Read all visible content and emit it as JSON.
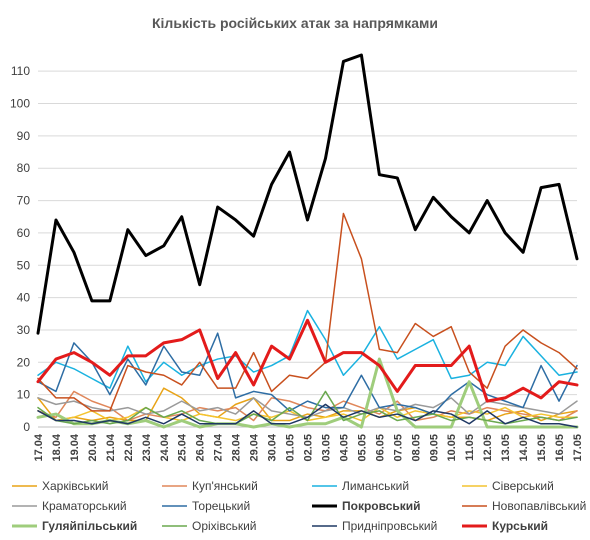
{
  "chart_data": {
    "type": "line",
    "title": "Кількість російських атак за напрямками",
    "xlabel": "",
    "ylabel": "",
    "ylim": [
      0,
      115
    ],
    "yticks": [
      0,
      10,
      20,
      30,
      40,
      50,
      60,
      70,
      80,
      90,
      100,
      110
    ],
    "grid": true,
    "legend_position": "bottom",
    "categories": [
      "17.04",
      "18.04",
      "19.04",
      "20.04",
      "21.04",
      "22.04",
      "23.04",
      "24.04",
      "25.04",
      "26.04",
      "27.04",
      "28.04",
      "29.04",
      "30.04",
      "01.05",
      "02.05",
      "03.05",
      "04.05",
      "05.05",
      "06.05",
      "07.05",
      "08.05",
      "09.05",
      "10.05",
      "11.05",
      "12.05",
      "13.05",
      "14.05",
      "15.05",
      "16.05",
      "17.05"
    ],
    "series": [
      {
        "name": "Харківський",
        "color": "#e8a317",
        "width": 1.5,
        "values": [
          9,
          2,
          3,
          2,
          3,
          2,
          2,
          12,
          9,
          4,
          3,
          7,
          9,
          2,
          2,
          4,
          3,
          5,
          5,
          3,
          5,
          6,
          4,
          3,
          3,
          2,
          4,
          5,
          2,
          4,
          5
        ]
      },
      {
        "name": "Куп'янський",
        "color": "#e0875a",
        "width": 1.5,
        "values": [
          5,
          3,
          11,
          8,
          6,
          2,
          4,
          3,
          4,
          6,
          5,
          6,
          2,
          9,
          8,
          6,
          5,
          8,
          6,
          4,
          8,
          2,
          3,
          5,
          4,
          6,
          5,
          4,
          3,
          2,
          5
        ]
      },
      {
        "name": "Лиманський",
        "color": "#1ab2e0",
        "width": 1.5,
        "values": [
          16,
          20,
          18,
          15,
          12,
          25,
          14,
          20,
          16,
          19,
          21,
          22,
          17,
          19,
          22,
          36,
          27,
          16,
          22,
          31,
          21,
          24,
          27,
          15,
          16,
          20,
          19,
          28,
          22,
          16,
          17
        ]
      },
      {
        "name": "Сіверський",
        "color": "#f4c430",
        "width": 1.5,
        "values": [
          5,
          2,
          3,
          5,
          2,
          3,
          6,
          3,
          2,
          4,
          3,
          2,
          4,
          3,
          5,
          2,
          3,
          4,
          2,
          6,
          3,
          5,
          4,
          3,
          5,
          4,
          6,
          3,
          4,
          3,
          3
        ]
      },
      {
        "name": "Краматорський",
        "color": "#9a9a9a",
        "width": 1.5,
        "values": [
          9,
          7,
          8,
          6,
          5,
          6,
          4,
          5,
          8,
          5,
          6,
          4,
          9,
          5,
          4,
          3,
          5,
          6,
          4,
          6,
          5,
          7,
          6,
          9,
          4,
          8,
          7,
          6,
          5,
          4,
          8
        ]
      },
      {
        "name": "Торецький",
        "color": "#2e6da4",
        "width": 1.5,
        "values": [
          14,
          11,
          26,
          20,
          10,
          21,
          13,
          25,
          17,
          16,
          29,
          9,
          11,
          10,
          5,
          8,
          6,
          6,
          16,
          6,
          7,
          6,
          4,
          10,
          14,
          10,
          8,
          6,
          19,
          8,
          19
        ]
      },
      {
        "name": "Покровський",
        "color": "#000000",
        "width": 3,
        "values": [
          29,
          64,
          54,
          39,
          39,
          61,
          53,
          56,
          65,
          44,
          68,
          64,
          59,
          75,
          85,
          64,
          83,
          113,
          115,
          78,
          77,
          61,
          71,
          65,
          60,
          70,
          60,
          54,
          74,
          75,
          52
        ]
      },
      {
        "name": "Новопавлівський",
        "color": "#c8501e",
        "width": 1.5,
        "values": [
          15,
          9,
          9,
          5,
          5,
          19,
          17,
          16,
          13,
          20,
          12,
          12,
          23,
          11,
          16,
          15,
          20,
          66,
          52,
          24,
          23,
          32,
          28,
          31,
          17,
          12,
          25,
          30,
          26,
          23,
          18
        ]
      },
      {
        "name": "Гуляйпільський",
        "color": "#9fcd7c",
        "width": 3,
        "values": [
          3,
          4,
          1,
          1,
          2,
          1,
          2,
          0,
          2,
          0,
          1,
          1,
          0,
          1,
          0,
          1,
          1,
          3,
          0,
          21,
          5,
          0,
          0,
          0,
          14,
          0,
          0,
          0,
          0,
          0,
          0
        ]
      },
      {
        "name": "Оріхівський",
        "color": "#6aa84f",
        "width": 1.5,
        "values": [
          6,
          2,
          1,
          2,
          1,
          2,
          6,
          3,
          5,
          2,
          1,
          1,
          4,
          2,
          6,
          2,
          11,
          2,
          4,
          5,
          2,
          3,
          4,
          2,
          3,
          2,
          1,
          2,
          3,
          2,
          3
        ]
      },
      {
        "name": "Придніпровський",
        "color": "#1f3864",
        "width": 1.5,
        "values": [
          5,
          2,
          2,
          1,
          2,
          1,
          3,
          1,
          4,
          1,
          1,
          1,
          5,
          1,
          1,
          3,
          7,
          3,
          5,
          3,
          4,
          2,
          5,
          4,
          1,
          5,
          1,
          3,
          1,
          1,
          0
        ]
      },
      {
        "name": "Курський",
        "color": "#e31b1b",
        "width": 3,
        "values": [
          14,
          21,
          23,
          20,
          16,
          22,
          22,
          26,
          27,
          30,
          15,
          23,
          13,
          25,
          21,
          33,
          20,
          23,
          23,
          19,
          11,
          19,
          19,
          19,
          25,
          8,
          9,
          12,
          9,
          14,
          13
        ]
      }
    ]
  }
}
